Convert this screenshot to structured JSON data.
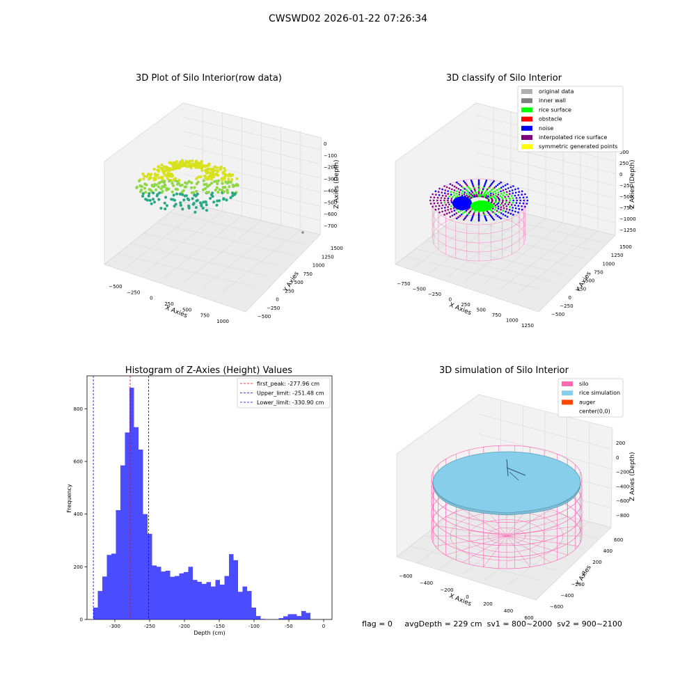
{
  "figure": {
    "suptitle": "CWSWD02 2026-01-22 07:26:34",
    "footer": "flag = 0     avgDepth = 229 cm  sv1 = 800~2000  sv2 = 900~2100"
  },
  "colors": {
    "raw_points_low": "#2aa884",
    "raw_points_high": "#d8e21c",
    "rice_surface": "#00ff00",
    "noise": "#0000ff",
    "interpolated": "#800080",
    "silo": "#ff69b4",
    "rice_simulation": "#87ceeb",
    "auger": "#ff4500",
    "histogram_bar": "#0000ff",
    "first_peak_line": "#ff0000",
    "limit_lines": "#0000ff",
    "pane_face": "#f2f2f2",
    "grid": "#d8d8d8"
  },
  "panels": {
    "raw": {
      "title": "3D Plot of Silo Interior(row data)",
      "xlabel": "X Axies",
      "ylabel": "Y Axies",
      "zlabel": "Z Axies (Depth)",
      "xticks": [
        "−500",
        "−250",
        "0",
        "250",
        "500",
        "750",
        "1000"
      ],
      "yticks": [
        "−500",
        "−250",
        "0",
        "250",
        "500",
        "750",
        "1000",
        "1250",
        "1500"
      ],
      "zticks": [
        "0",
        "−100",
        "−200",
        "−300",
        "−400",
        "−500",
        "−600",
        "−700"
      ]
    },
    "classify": {
      "title": "3D classify of Silo Interior",
      "xlabel": "X Axies",
      "ylabel": "Y Axies",
      "zlabel": "Z Axies (Depth)",
      "xticks": [
        "−750",
        "−500",
        "−250",
        "0",
        "250",
        "500",
        "750",
        "1000",
        "1250"
      ],
      "yticks": [
        "−500",
        "−250",
        "0",
        "250",
        "500",
        "750",
        "1000",
        "1250",
        "1500"
      ],
      "zticks": [
        "500",
        "250",
        "0",
        "−250",
        "−500",
        "−750",
        "−1000",
        "−1250"
      ],
      "legend": [
        {
          "label": "original data",
          "color": "#b0b0b0"
        },
        {
          "label": "inner wall",
          "color": "#808080"
        },
        {
          "label": "rice surface",
          "color": "#00ff00"
        },
        {
          "label": "obstacle",
          "color": "#ff0000"
        },
        {
          "label": "noise",
          "color": "#0000ff"
        },
        {
          "label": "interpolated rice surface",
          "color": "#800080"
        },
        {
          "label": "symmetric generated points",
          "color": "#ffff00"
        }
      ]
    },
    "simulation": {
      "title": "3D simulation of Silo Interior",
      "xlabel": "X Axies",
      "ylabel": "Y Axies",
      "zlabel": "Z Axies (Depth)",
      "xticks": [
        "−600",
        "−400",
        "−200",
        "0",
        "200",
        "400",
        "600"
      ],
      "yticks": [
        "−600",
        "−400",
        "−200",
        "0",
        "200",
        "400",
        "600"
      ],
      "zticks": [
        "200",
        "0",
        "−200",
        "−400",
        "−600",
        "−800"
      ],
      "legend": [
        {
          "label": "silo",
          "color": "#ff69b4"
        },
        {
          "label": "rice simulation",
          "color": "#87ceeb"
        },
        {
          "label": "auger",
          "color": "#ff4500"
        },
        {
          "label": "center(0,0)",
          "color": "#ffffff"
        }
      ]
    }
  },
  "chart_data": {
    "type": "bar",
    "title": "Histogram of Z-Axies (Height) Values",
    "xlabel": "Depth (cm)",
    "ylabel": "Frequency",
    "xlim": [
      -340,
      12
    ],
    "ylim": [
      0,
      925
    ],
    "bin_width": 6.5,
    "bin_start": -331.0,
    "values": [
      45,
      108,
      163,
      245,
      250,
      415,
      585,
      710,
      880,
      730,
      645,
      400,
      325,
      205,
      200,
      182,
      185,
      162,
      165,
      175,
      180,
      200,
      150,
      143,
      135,
      142,
      125,
      150,
      132,
      165,
      248,
      225,
      105,
      125,
      108,
      45,
      13,
      2,
      0,
      0,
      0,
      5,
      12,
      20,
      20,
      13,
      32,
      25
    ],
    "xticks": [
      -300,
      -250,
      -200,
      -150,
      -100,
      -50,
      0
    ],
    "yticks": [
      0,
      200,
      400,
      600,
      800
    ],
    "vlines": [
      {
        "label": "first_peak: -277.96 cm",
        "x": -277.96,
        "color": "#ff0000"
      },
      {
        "label": "Upper_limit: -251.48 cm",
        "x": -251.48,
        "color": "#0000ff"
      },
      {
        "label": "Lower_limit: -330.90 cm",
        "x": -330.9,
        "color": "#0000ff"
      }
    ]
  }
}
